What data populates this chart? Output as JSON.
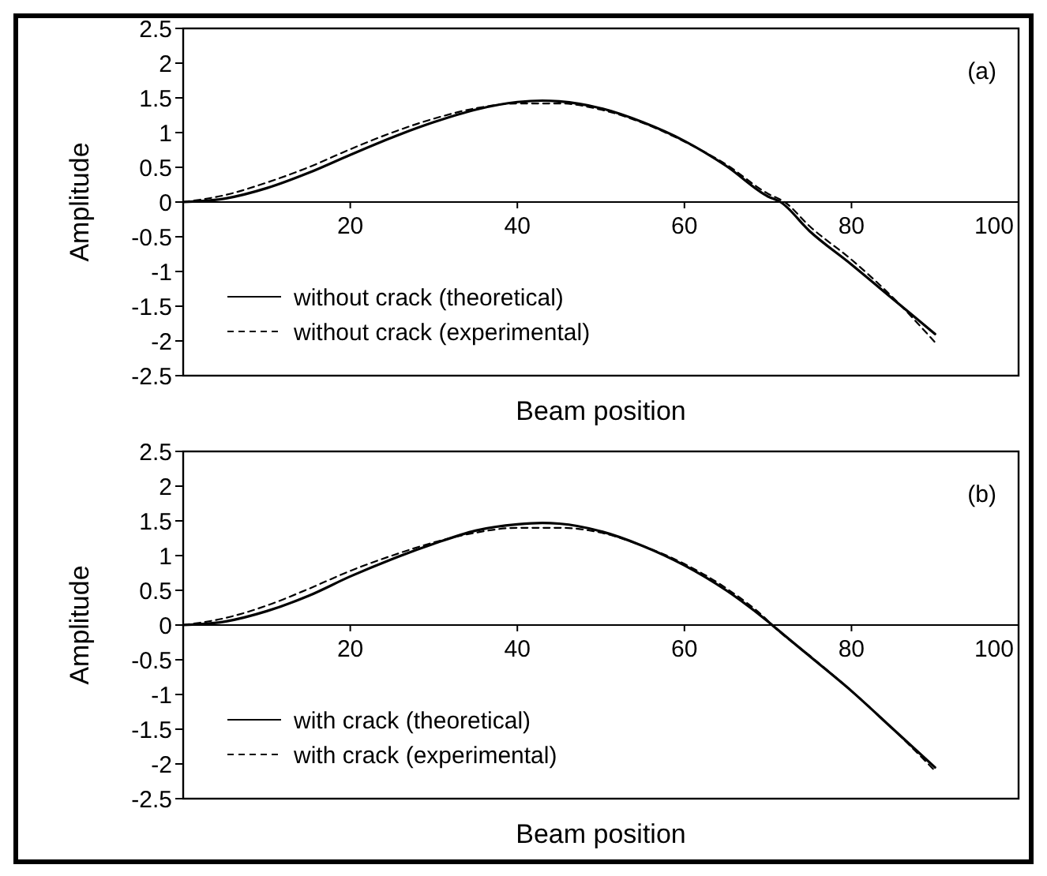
{
  "chart_data": [
    {
      "type": "line",
      "xlabel": "Beam position",
      "ylabel": "Amplitude",
      "annotations": [
        "(a)"
      ],
      "xlim": [
        0,
        100
      ],
      "ylim": [
        -2.5,
        2.5
      ],
      "xticks": [
        20,
        40,
        60,
        80,
        100
      ],
      "yticks": [
        -2.5,
        -2,
        -1.5,
        -1,
        -0.5,
        0,
        0.5,
        1,
        1.5,
        2,
        2.5
      ],
      "legend": "bottom left",
      "grid": false,
      "series": [
        {
          "name": "without crack (theoretical)",
          "color": "#000000",
          "line_style": "solid",
          "x": [
            0,
            5,
            10,
            15,
            20,
            25,
            30,
            35,
            40,
            43,
            45,
            50,
            55,
            60,
            65,
            70,
            71.5,
            75,
            80,
            85,
            90
          ],
          "values": [
            0,
            0.05,
            0.2,
            0.42,
            0.68,
            0.93,
            1.15,
            1.33,
            1.44,
            1.46,
            1.45,
            1.35,
            1.15,
            0.88,
            0.52,
            0.08,
            0,
            -0.42,
            -0.9,
            -1.4,
            -1.9
          ]
        },
        {
          "name": "without crack (experimental)",
          "color": "#000000",
          "line_style": "dashed",
          "x": [
            0,
            5,
            10,
            15,
            20,
            25,
            30,
            35,
            40,
            45,
            50,
            55,
            60,
            65,
            70,
            72,
            75,
            80,
            85,
            90
          ],
          "values": [
            0,
            0.1,
            0.28,
            0.5,
            0.76,
            1.0,
            1.2,
            1.35,
            1.42,
            1.42,
            1.33,
            1.14,
            0.87,
            0.54,
            0.12,
            0,
            -0.35,
            -0.83,
            -1.38,
            -2.02
          ]
        }
      ]
    },
    {
      "type": "line",
      "xlabel": "Beam position",
      "ylabel": "Amplitude",
      "annotations": [
        "(b)"
      ],
      "xlim": [
        0,
        100
      ],
      "ylim": [
        -2.5,
        2.5
      ],
      "xticks": [
        20,
        40,
        60,
        80,
        100
      ],
      "yticks": [
        -2.5,
        -2,
        -1.5,
        -1,
        -0.5,
        0,
        0.5,
        1,
        1.5,
        2,
        2.5
      ],
      "legend": "bottom left",
      "grid": false,
      "series": [
        {
          "name": "with crack (theoretical)",
          "color": "#000000",
          "line_style": "solid",
          "x": [
            0,
            5,
            10,
            15,
            20,
            25,
            30,
            35,
            40,
            43,
            45,
            50,
            55,
            60,
            65,
            70,
            70.5,
            75,
            80,
            85,
            90
          ],
          "values": [
            0,
            0.05,
            0.2,
            0.42,
            0.7,
            0.95,
            1.17,
            1.36,
            1.45,
            1.47,
            1.46,
            1.35,
            1.14,
            0.86,
            0.5,
            0.05,
            0,
            -0.45,
            -0.95,
            -1.5,
            -2.05
          ]
        },
        {
          "name": "with crack (experimental)",
          "color": "#000000",
          "line_style": "dashed",
          "x": [
            0,
            5,
            10,
            15,
            20,
            25,
            30,
            35,
            40,
            45,
            50,
            55,
            60,
            65,
            70,
            70.5,
            75,
            80,
            85,
            90
          ],
          "values": [
            0,
            0.1,
            0.28,
            0.52,
            0.78,
            1.0,
            1.19,
            1.33,
            1.4,
            1.4,
            1.33,
            1.14,
            0.88,
            0.53,
            0.06,
            0,
            -0.44,
            -0.95,
            -1.5,
            -2.1
          ]
        }
      ]
    }
  ]
}
